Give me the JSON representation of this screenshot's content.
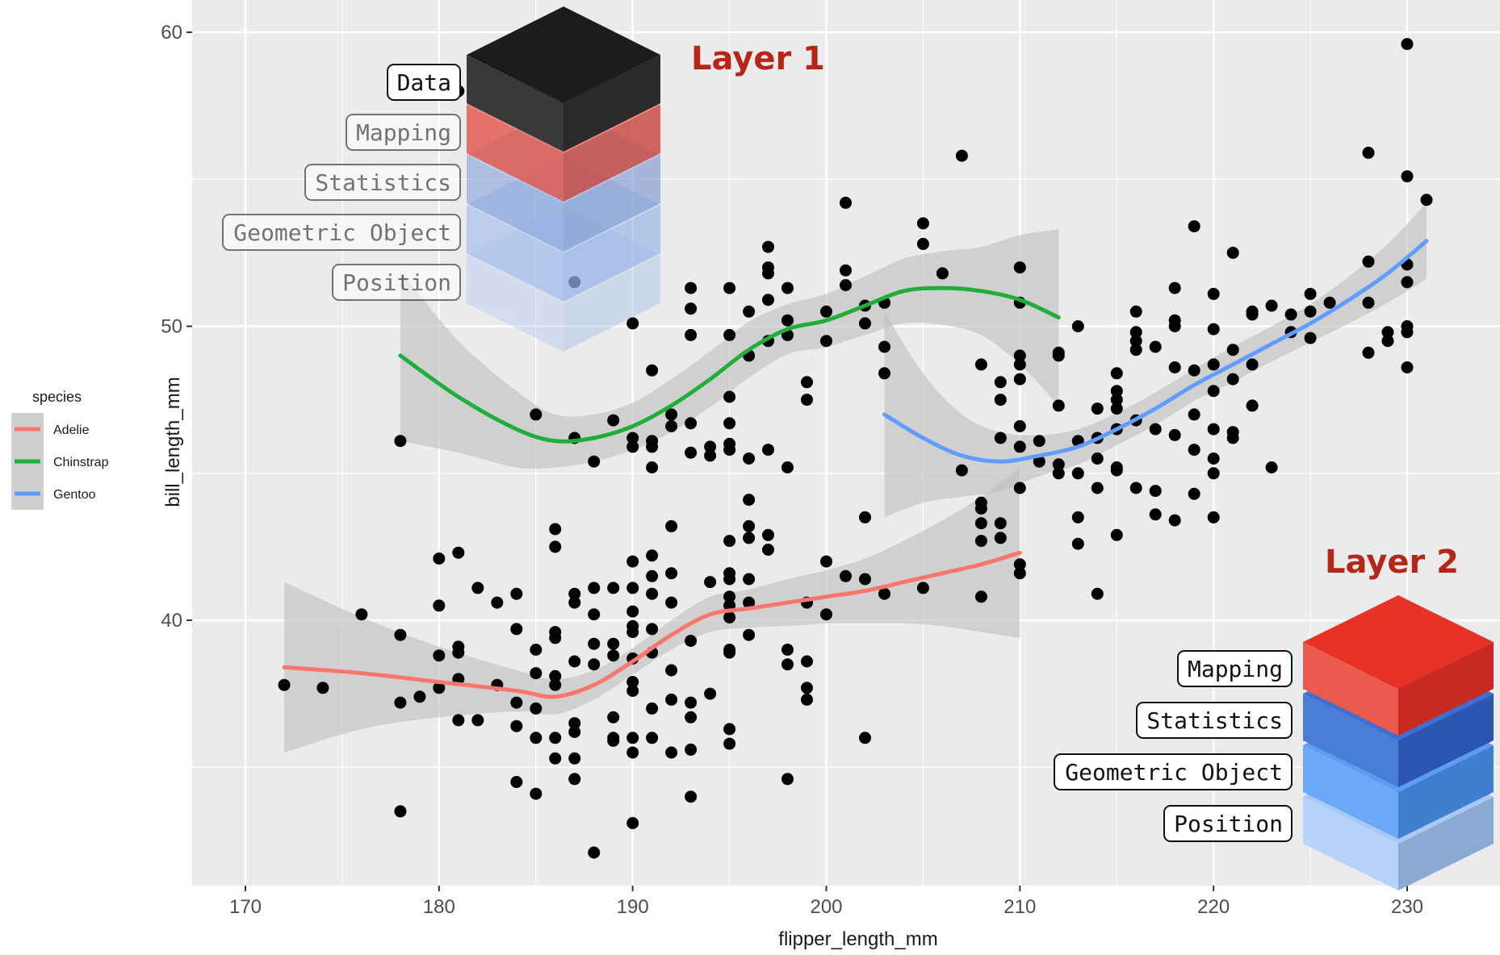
{
  "colors": {
    "panel_bg": "#ebebeb",
    "grid": "#ffffff",
    "points": "#000000",
    "ribbon": "#bebebe",
    "Adelie": "#f8766d",
    "Chinstrap": "#1fae3a",
    "Gentoo": "#619cff",
    "layer_title": "#b52618"
  },
  "chart_data": {
    "type": "scatter",
    "xlabel": "flipper_length_mm",
    "ylabel": "bill_length_mm",
    "xlim": [
      169,
      233
    ],
    "ylim": [
      30.5,
      61
    ],
    "x_ticks": [
      170,
      180,
      190,
      200,
      210,
      220,
      230
    ],
    "y_ticks": [
      40,
      50,
      60
    ],
    "grid": true,
    "legend": {
      "title": "species",
      "placement": "left",
      "entries": [
        "Adelie",
        "Chinstrap",
        "Gentoo"
      ]
    },
    "points": [
      [
        172,
        37.8
      ],
      [
        174,
        37.7
      ],
      [
        176,
        40.2
      ],
      [
        178,
        39.5
      ],
      [
        178,
        37.2
      ],
      [
        178,
        33.5
      ],
      [
        178,
        46.1
      ],
      [
        179,
        37.4
      ],
      [
        180,
        38.8
      ],
      [
        180,
        40.5
      ],
      [
        180,
        42.1
      ],
      [
        180,
        37.7
      ],
      [
        181,
        38.9
      ],
      [
        181,
        39.1
      ],
      [
        181,
        42.3
      ],
      [
        181,
        38.0
      ],
      [
        181,
        36.6
      ],
      [
        181,
        58.0
      ],
      [
        182,
        41.1
      ],
      [
        182,
        36.6
      ],
      [
        183,
        40.6
      ],
      [
        183,
        37.8
      ],
      [
        184,
        39.7
      ],
      [
        184,
        40.9
      ],
      [
        184,
        37.2
      ],
      [
        184,
        36.4
      ],
      [
        184,
        34.5
      ],
      [
        185,
        38.2
      ],
      [
        185,
        39.0
      ],
      [
        185,
        37.0
      ],
      [
        185,
        36.0
      ],
      [
        185,
        34.1
      ],
      [
        185,
        47.0
      ],
      [
        186,
        39.6
      ],
      [
        186,
        38.1
      ],
      [
        186,
        36.0
      ],
      [
        186,
        35.3
      ],
      [
        186,
        37.8
      ],
      [
        186,
        39.4
      ],
      [
        186,
        42.5
      ],
      [
        186,
        43.1
      ],
      [
        187,
        38.6
      ],
      [
        187,
        40.6
      ],
      [
        187,
        40.9
      ],
      [
        187,
        36.2
      ],
      [
        187,
        35.3
      ],
      [
        187,
        34.6
      ],
      [
        187,
        36.5
      ],
      [
        187,
        46.2
      ],
      [
        187,
        51.5
      ],
      [
        188,
        41.1
      ],
      [
        188,
        38.5
      ],
      [
        188,
        40.2
      ],
      [
        188,
        39.2
      ],
      [
        188,
        32.1
      ],
      [
        188,
        45.4
      ],
      [
        189,
        38.8
      ],
      [
        189,
        41.1
      ],
      [
        189,
        39.2
      ],
      [
        189,
        36.7
      ],
      [
        189,
        35.9
      ],
      [
        189,
        36.0
      ],
      [
        189,
        46.8
      ],
      [
        190,
        38.7
      ],
      [
        190,
        39.6
      ],
      [
        190,
        40.3
      ],
      [
        190,
        41.1
      ],
      [
        190,
        42.0
      ],
      [
        190,
        36.0
      ],
      [
        190,
        37.6
      ],
      [
        190,
        35.5
      ],
      [
        190,
        37.9
      ],
      [
        190,
        33.1
      ],
      [
        190,
        39.8
      ],
      [
        190,
        46.2
      ],
      [
        190,
        45.9
      ],
      [
        190,
        50.1
      ],
      [
        191,
        40.9
      ],
      [
        191,
        38.9
      ],
      [
        191,
        39.7
      ],
      [
        191,
        41.5
      ],
      [
        191,
        42.2
      ],
      [
        191,
        37.0
      ],
      [
        191,
        36.0
      ],
      [
        191,
        45.2
      ],
      [
        191,
        46.1
      ],
      [
        191,
        48.5
      ],
      [
        191,
        45.9
      ],
      [
        192,
        40.6
      ],
      [
        192,
        41.6
      ],
      [
        192,
        37.3
      ],
      [
        192,
        38.3
      ],
      [
        192,
        35.5
      ],
      [
        192,
        43.2
      ],
      [
        192,
        46.6
      ],
      [
        192,
        47.0
      ],
      [
        193,
        39.3
      ],
      [
        193,
        36.7
      ],
      [
        193,
        37.2
      ],
      [
        193,
        35.6
      ],
      [
        193,
        34.0
      ],
      [
        193,
        45.7
      ],
      [
        193,
        46.7
      ],
      [
        193,
        49.7
      ],
      [
        193,
        50.6
      ],
      [
        193,
        51.3
      ],
      [
        194,
        41.3
      ],
      [
        194,
        37.5
      ],
      [
        194,
        45.9
      ],
      [
        194,
        45.6
      ],
      [
        195,
        40.8
      ],
      [
        195,
        39.0
      ],
      [
        195,
        41.4
      ],
      [
        195,
        40.1
      ],
      [
        195,
        41.6
      ],
      [
        195,
        40.5
      ],
      [
        195,
        35.8
      ],
      [
        195,
        36.3
      ],
      [
        195,
        42.7
      ],
      [
        195,
        38.9
      ],
      [
        195,
        46.0
      ],
      [
        195,
        45.8
      ],
      [
        195,
        46.7
      ],
      [
        195,
        47.6
      ],
      [
        195,
        49.7
      ],
      [
        195,
        51.3
      ],
      [
        196,
        39.5
      ],
      [
        196,
        41.4
      ],
      [
        196,
        42.8
      ],
      [
        196,
        43.2
      ],
      [
        196,
        40.6
      ],
      [
        196,
        44.1
      ],
      [
        196,
        45.5
      ],
      [
        196,
        49.0
      ],
      [
        196,
        50.5
      ],
      [
        197,
        42.4
      ],
      [
        197,
        42.9
      ],
      [
        197,
        45.8
      ],
      [
        197,
        49.5
      ],
      [
        197,
        50.9
      ],
      [
        197,
        51.8
      ],
      [
        197,
        52.0
      ],
      [
        197,
        52.7
      ],
      [
        198,
        39.0
      ],
      [
        198,
        38.5
      ],
      [
        198,
        34.6
      ],
      [
        198,
        45.2
      ],
      [
        198,
        49.7
      ],
      [
        198,
        51.3
      ],
      [
        198,
        50.2
      ],
      [
        199,
        37.7
      ],
      [
        199,
        37.3
      ],
      [
        199,
        38.6
      ],
      [
        199,
        40.6
      ],
      [
        199,
        48.1
      ],
      [
        199,
        47.5
      ],
      [
        200,
        40.2
      ],
      [
        200,
        42.0
      ],
      [
        200,
        49.5
      ],
      [
        200,
        50.5
      ],
      [
        201,
        41.5
      ],
      [
        201,
        51.9
      ],
      [
        201,
        51.4
      ],
      [
        201,
        54.2
      ],
      [
        202,
        41.4
      ],
      [
        202,
        36.0
      ],
      [
        202,
        43.5
      ],
      [
        202,
        50.1
      ],
      [
        202,
        50.7
      ],
      [
        203,
        40.9
      ],
      [
        203,
        48.4
      ],
      [
        203,
        49.3
      ],
      [
        203,
        50.8
      ],
      [
        205,
        41.1
      ],
      [
        205,
        52.8
      ],
      [
        205,
        53.5
      ],
      [
        206,
        51.8
      ],
      [
        207,
        45.1
      ],
      [
        207,
        55.8
      ],
      [
        208,
        40.8
      ],
      [
        208,
        42.7
      ],
      [
        208,
        43.3
      ],
      [
        208,
        43.8
      ],
      [
        208,
        44.0
      ],
      [
        208,
        48.7
      ],
      [
        209,
        43.3
      ],
      [
        209,
        42.8
      ],
      [
        209,
        46.2
      ],
      [
        209,
        47.5
      ],
      [
        209,
        48.1
      ],
      [
        210,
        41.9
      ],
      [
        210,
        41.6
      ],
      [
        210,
        44.5
      ],
      [
        210,
        45.9
      ],
      [
        210,
        46.6
      ],
      [
        210,
        48.2
      ],
      [
        210,
        48.7
      ],
      [
        210,
        49.0
      ],
      [
        210,
        50.8
      ],
      [
        210,
        52.0
      ],
      [
        211,
        46.1
      ],
      [
        211,
        45.4
      ],
      [
        212,
        45.0
      ],
      [
        212,
        45.3
      ],
      [
        212,
        47.3
      ],
      [
        212,
        49.0
      ],
      [
        212,
        49.1
      ],
      [
        213,
        43.5
      ],
      [
        213,
        42.6
      ],
      [
        213,
        45.0
      ],
      [
        213,
        46.1
      ],
      [
        213,
        50.0
      ],
      [
        214,
        44.5
      ],
      [
        214,
        45.5
      ],
      [
        214,
        46.2
      ],
      [
        214,
        47.2
      ],
      [
        214,
        40.9
      ],
      [
        215,
        42.9
      ],
      [
        215,
        45.2
      ],
      [
        215,
        46.5
      ],
      [
        215,
        47.2
      ],
      [
        215,
        47.5
      ],
      [
        215,
        47.8
      ],
      [
        215,
        48.4
      ],
      [
        215,
        45.1
      ],
      [
        216,
        44.5
      ],
      [
        216,
        46.8
      ],
      [
        216,
        49.5
      ],
      [
        216,
        49.8
      ],
      [
        216,
        50.5
      ],
      [
        216,
        49.2
      ],
      [
        217,
        43.6
      ],
      [
        217,
        44.4
      ],
      [
        217,
        46.5
      ],
      [
        217,
        49.3
      ],
      [
        218,
        43.4
      ],
      [
        218,
        46.3
      ],
      [
        218,
        48.6
      ],
      [
        218,
        50.0
      ],
      [
        218,
        50.2
      ],
      [
        218,
        51.3
      ],
      [
        219,
        44.3
      ],
      [
        219,
        45.8
      ],
      [
        219,
        47.0
      ],
      [
        219,
        48.5
      ],
      [
        219,
        53.4
      ],
      [
        220,
        43.5
      ],
      [
        220,
        45.0
      ],
      [
        220,
        45.5
      ],
      [
        220,
        46.5
      ],
      [
        220,
        47.8
      ],
      [
        220,
        48.7
      ],
      [
        220,
        49.9
      ],
      [
        220,
        51.1
      ],
      [
        221,
        46.2
      ],
      [
        221,
        46.4
      ],
      [
        221,
        48.2
      ],
      [
        221,
        49.2
      ],
      [
        221,
        52.5
      ],
      [
        222,
        47.3
      ],
      [
        222,
        48.7
      ],
      [
        222,
        50.4
      ],
      [
        222,
        50.5
      ],
      [
        223,
        45.2
      ],
      [
        223,
        50.7
      ],
      [
        224,
        49.8
      ],
      [
        224,
        50.4
      ],
      [
        225,
        49.6
      ],
      [
        225,
        50.5
      ],
      [
        225,
        51.1
      ],
      [
        226,
        50.8
      ],
      [
        228,
        49.1
      ],
      [
        228,
        50.8
      ],
      [
        228,
        52.2
      ],
      [
        228,
        55.9
      ],
      [
        229,
        49.5
      ],
      [
        229,
        49.8
      ],
      [
        230,
        48.6
      ],
      [
        230,
        49.8
      ],
      [
        230,
        50.0
      ],
      [
        230,
        51.5
      ],
      [
        230,
        52.1
      ],
      [
        230,
        55.1
      ],
      [
        230,
        59.6
      ],
      [
        231,
        54.3
      ]
    ],
    "series": [
      {
        "name": "Adelie",
        "x": [
          172,
          176,
          180,
          184,
          186,
          188,
          190,
          192,
          194,
          196,
          198,
          200,
          202,
          204,
          206,
          208,
          210
        ],
        "y": [
          38.4,
          38.2,
          37.9,
          37.6,
          37.4,
          37.8,
          38.6,
          39.5,
          40.2,
          40.4,
          40.6,
          40.8,
          41.0,
          41.3,
          41.6,
          41.9,
          42.3
        ],
        "ci": [
          2.9,
          1.9,
          1.2,
          0.7,
          0.6,
          0.5,
          0.45,
          0.5,
          0.6,
          0.65,
          0.8,
          0.9,
          1.1,
          1.4,
          1.8,
          2.3,
          2.9
        ]
      },
      {
        "name": "Chinstrap",
        "x": [
          178,
          181,
          184,
          186,
          188,
          190,
          192,
          194,
          196,
          198,
          200,
          202,
          204,
          206,
          208,
          210,
          212
        ],
        "y": [
          49.0,
          47.6,
          46.5,
          46.1,
          46.2,
          46.6,
          47.3,
          48.2,
          49.2,
          49.9,
          50.2,
          50.7,
          51.2,
          51.3,
          51.2,
          50.9,
          50.3
        ],
        "ci": [
          2.9,
          1.9,
          1.3,
          0.9,
          0.8,
          0.8,
          0.9,
          0.95,
          0.95,
          0.85,
          0.9,
          1.0,
          1.1,
          1.25,
          1.5,
          2.2,
          3.0
        ]
      },
      {
        "name": "Gentoo",
        "x": [
          203,
          205,
          207,
          209,
          211,
          213,
          215,
          217,
          219,
          221,
          223,
          225,
          227,
          229,
          231
        ],
        "y": [
          47.0,
          46.2,
          45.6,
          45.4,
          45.6,
          45.9,
          46.5,
          47.2,
          48.0,
          48.7,
          49.4,
          50.1,
          50.9,
          51.8,
          52.9
        ],
        "ci": [
          3.5,
          2.2,
          1.4,
          1.0,
          0.7,
          0.6,
          0.55,
          0.55,
          0.55,
          0.6,
          0.6,
          0.65,
          0.8,
          1.0,
          1.3
        ]
      }
    ]
  },
  "layer1": {
    "title": "Layer 1",
    "labels": [
      "Data",
      "Mapping",
      "Statistics",
      "Geometric Object",
      "Position"
    ]
  },
  "layer2": {
    "title": "Layer 2",
    "labels": [
      "Mapping",
      "Statistics",
      "Geometric Object",
      "Position"
    ]
  }
}
